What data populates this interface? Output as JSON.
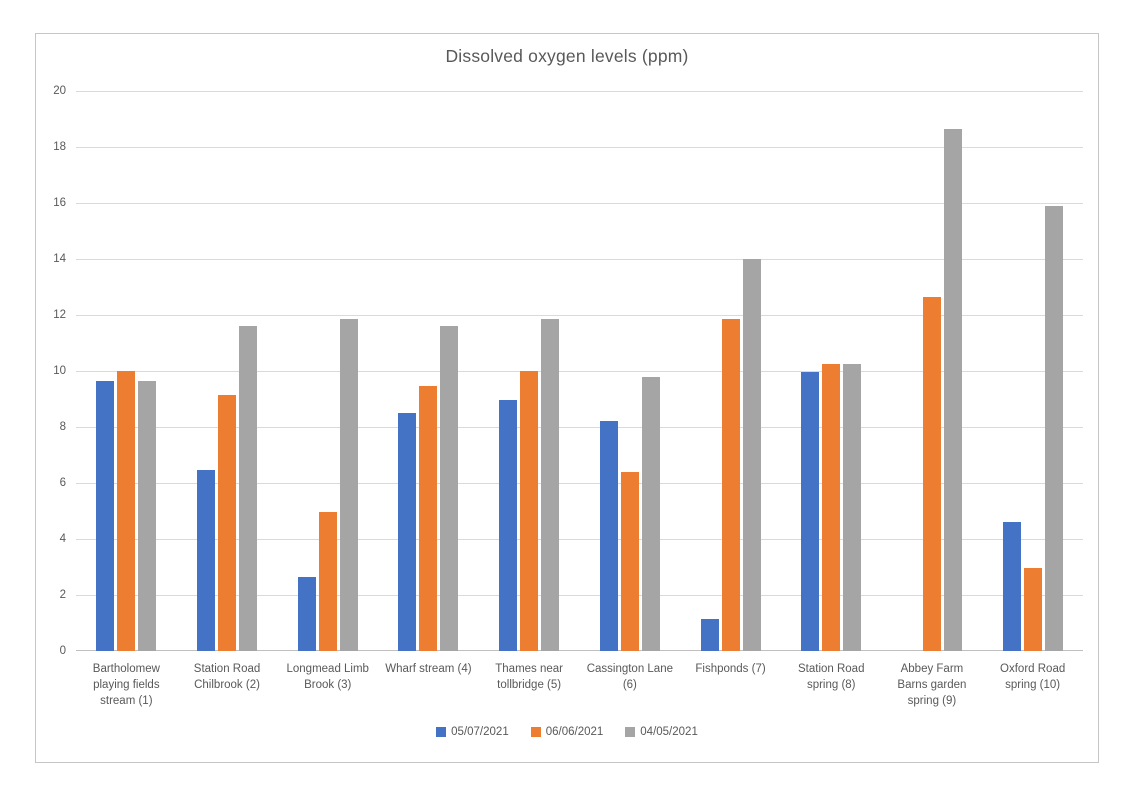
{
  "chart_data": {
    "type": "bar",
    "title": "Dissolved oxygen levels (ppm)",
    "categories": [
      "Bartholomew playing fields stream (1)",
      "Station Road Chilbrook (2)",
      "Longmead Limb Brook (3)",
      "Wharf stream (4)",
      "Thames near tollbridge (5)",
      "Cassington Lane (6)",
      "Fishponds (7)",
      "Station Road spring (8)",
      "Abbey Farm Barns garden spring (9)",
      "Oxford Road spring (10)"
    ],
    "series": [
      {
        "name": "05/07/2021",
        "color": "#4472C4",
        "values": [
          9.65,
          6.45,
          2.65,
          8.5,
          8.95,
          8.2,
          1.15,
          9.95,
          0,
          4.6
        ]
      },
      {
        "name": "06/06/2021",
        "color": "#ED7D31",
        "values": [
          10.0,
          9.15,
          4.95,
          9.45,
          10.0,
          6.4,
          11.85,
          10.25,
          12.65,
          2.95
        ]
      },
      {
        "name": "04/05/2021",
        "color": "#A5A5A5",
        "values": [
          9.65,
          11.6,
          11.85,
          11.6,
          11.85,
          9.8,
          14.0,
          10.25,
          18.65,
          15.9
        ]
      }
    ],
    "xlabel": "",
    "ylabel": "",
    "ylim": [
      0,
      20
    ],
    "yticks": [
      0,
      2,
      4,
      6,
      8,
      10,
      12,
      14,
      16,
      18,
      20
    ],
    "grid": true,
    "legend_position": "bottom"
  },
  "colors": {
    "gridline": "#dadada",
    "axis_line": "#bfbfbf",
    "text": "#595959",
    "chart_border": "#c6c6c6",
    "background": "#ffffff"
  }
}
